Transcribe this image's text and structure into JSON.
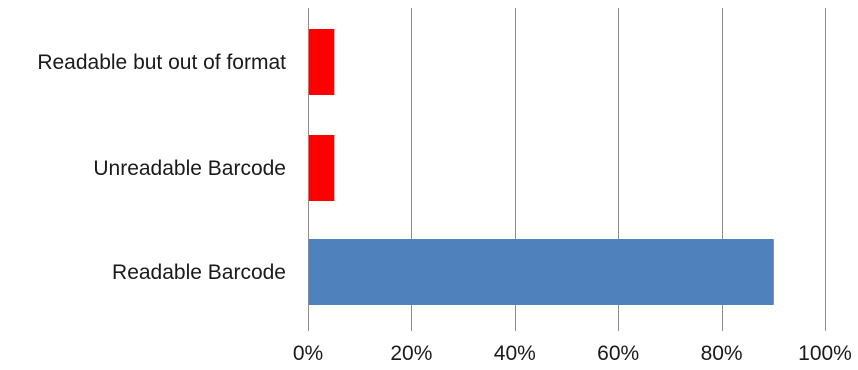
{
  "chart_data": {
    "type": "bar",
    "orientation": "horizontal",
    "categories": [
      "Readable but out of format",
      "Unreadable Barcode",
      "Readable Barcode"
    ],
    "values": [
      0.05,
      0.05,
      0.9
    ],
    "bar_colors": [
      "#ff0000",
      "#ff0000",
      "#4f81bd"
    ],
    "xlim": [
      0,
      1
    ],
    "ticks": [
      {
        "value": 0,
        "label": "0%"
      },
      {
        "value": 0.2,
        "label": "20%"
      },
      {
        "value": 0.4,
        "label": "40%"
      },
      {
        "value": 0.6,
        "label": "60%"
      },
      {
        "value": 0.8,
        "label": "80%"
      },
      {
        "value": 1.0,
        "label": "100%"
      }
    ],
    "grid": true,
    "title": "",
    "xlabel": "",
    "ylabel": ""
  }
}
